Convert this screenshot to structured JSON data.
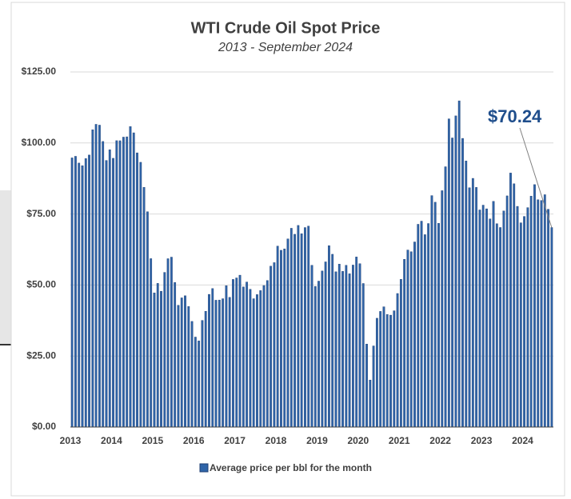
{
  "chart_data": {
    "type": "bar",
    "title": "WTI Crude Oil Spot Price",
    "subtitle": "2013 - September 2024",
    "annotation": "$70.24",
    "categories": [
      "2013",
      null,
      null,
      null,
      null,
      null,
      null,
      null,
      null,
      null,
      null,
      null,
      "2014",
      null,
      null,
      null,
      null,
      null,
      null,
      null,
      null,
      null,
      null,
      null,
      "2015",
      null,
      null,
      null,
      null,
      null,
      null,
      null,
      null,
      null,
      null,
      null,
      "2016",
      null,
      null,
      null,
      null,
      null,
      null,
      null,
      null,
      null,
      null,
      null,
      "2017",
      null,
      null,
      null,
      null,
      null,
      null,
      null,
      null,
      null,
      null,
      null,
      "2018",
      null,
      null,
      null,
      null,
      null,
      null,
      null,
      null,
      null,
      null,
      null,
      "2019",
      null,
      null,
      null,
      null,
      null,
      null,
      null,
      null,
      null,
      null,
      null,
      "2020",
      null,
      null,
      null,
      null,
      null,
      null,
      null,
      null,
      null,
      null,
      null,
      "2021",
      null,
      null,
      null,
      null,
      null,
      null,
      null,
      null,
      null,
      null,
      null,
      "2022",
      null,
      null,
      null,
      null,
      null,
      null,
      null,
      null,
      null,
      null,
      null,
      "2023",
      null,
      null,
      null,
      null,
      null,
      null,
      null,
      null,
      null,
      null,
      null,
      "2024",
      null,
      null,
      null,
      null,
      null,
      null,
      null,
      null
    ],
    "series": [
      {
        "name": "Average price per bbl for the month",
        "color": "#2f64a8",
        "values": [
          94.76,
          95.31,
          92.94,
          92.02,
          94.51,
          95.77,
          104.67,
          106.57,
          106.29,
          100.54,
          93.86,
          97.63,
          94.62,
          100.82,
          100.8,
          102.07,
          102.18,
          105.79,
          103.59,
          96.54,
          93.21,
          84.4,
          75.79,
          59.29,
          47.22,
          50.58,
          47.82,
          54.45,
          59.27,
          59.82,
          50.9,
          42.87,
          45.48,
          46.22,
          42.44,
          37.19,
          31.68,
          30.32,
          37.55,
          40.75,
          46.71,
          48.76,
          44.65,
          44.72,
          45.18,
          49.78,
          45.66,
          51.97,
          52.5,
          53.47,
          49.33,
          51.06,
          48.48,
          45.18,
          46.63,
          48.04,
          49.82,
          51.58,
          56.64,
          57.88,
          63.7,
          62.23,
          62.73,
          66.25,
          69.98,
          67.87,
          70.98,
          68.06,
          70.23,
          70.75,
          56.96,
          49.52,
          51.38,
          54.95,
          58.15,
          63.86,
          60.83,
          54.66,
          57.35,
          54.81,
          56.95,
          53.96,
          57.03,
          59.88,
          57.52,
          50.54,
          29.21,
          16.55,
          28.56,
          38.31,
          40.71,
          42.34,
          39.63,
          39.4,
          40.94,
          47.02,
          52.0,
          59.04,
          62.33,
          61.72,
          65.17,
          71.38,
          72.49,
          67.73,
          71.65,
          81.48,
          79.15,
          71.71,
          83.22,
          91.64,
          108.5,
          101.78,
          109.55,
          114.84,
          101.62,
          93.67,
          84.26,
          87.55,
          84.37,
          76.44,
          78.12,
          76.83,
          73.28,
          79.45,
          71.58,
          70.25,
          76.07,
          81.39,
          89.43,
          85.64,
          77.69,
          71.9,
          74.15,
          77.25,
          81.28,
          85.35,
          80.02,
          79.77,
          81.8,
          76.68,
          70.24
        ]
      }
    ],
    "ylim": [
      0,
      125
    ],
    "yticks": [
      {
        "value": 0,
        "label": "$0.00"
      },
      {
        "value": 25,
        "label": "$25.00"
      },
      {
        "value": 50,
        "label": "$50.00"
      },
      {
        "value": 75,
        "label": "$75.00"
      },
      {
        "value": 100,
        "label": "$100.00"
      },
      {
        "value": 125,
        "label": "$125.00"
      }
    ],
    "grid": true
  }
}
